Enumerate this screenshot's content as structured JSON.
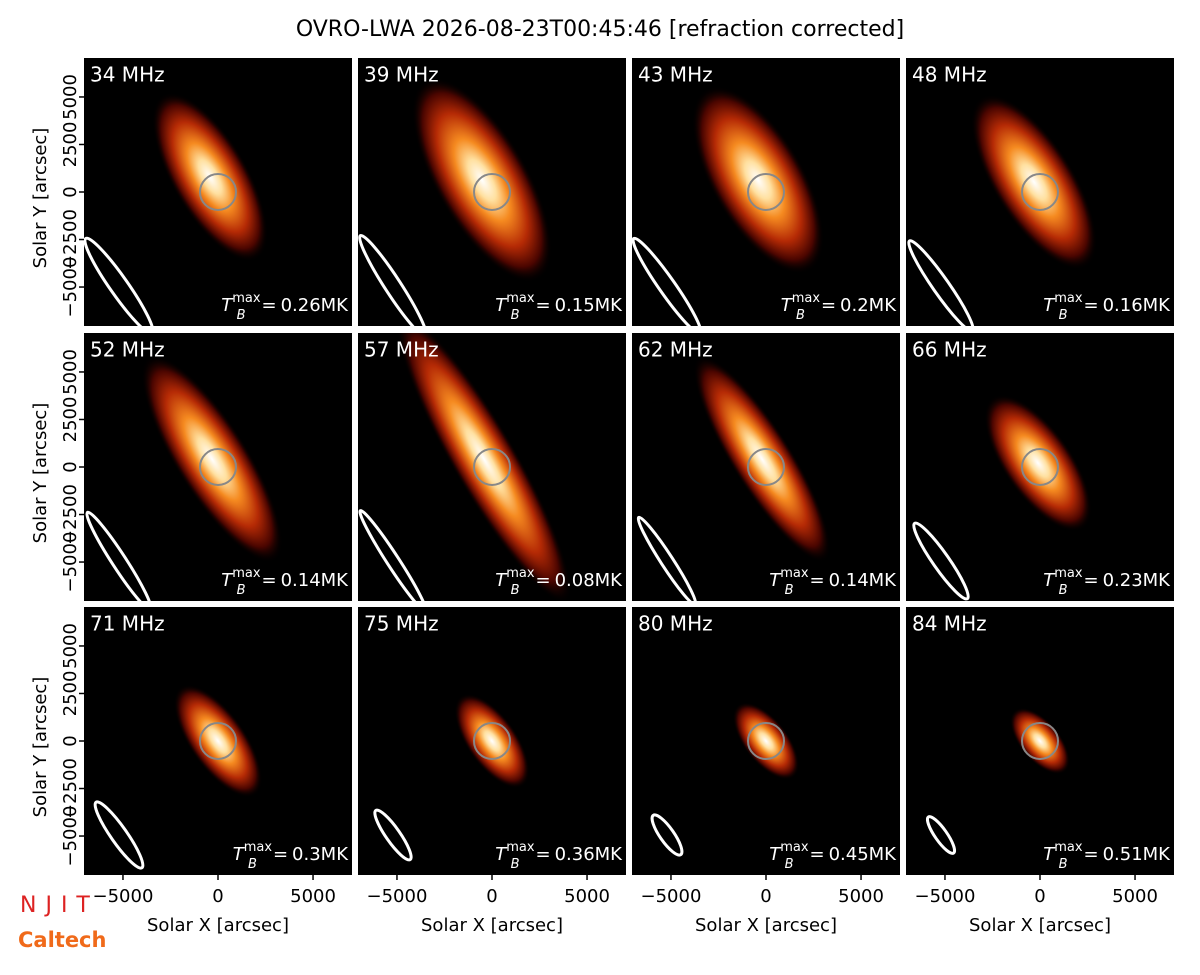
{
  "chart_data": {
    "type": "image",
    "title": "OVRO-LWA 2026-08-23T00:45:46 [refraction corrected]",
    "x_label": "Solar X [arcsec]",
    "y_label": "Solar Y [arcsec]",
    "xlim": [
      -7050,
      7050
    ],
    "ylim": [
      -7050,
      7050
    ],
    "xticks": [
      {
        "value": -5000,
        "label": "−5000"
      },
      0,
      5000
    ],
    "yticks": [
      {
        "value": -5000,
        "label": "−5000"
      },
      {
        "value": -2500,
        "label": "−2500"
      },
      0,
      2500,
      5000
    ],
    "tb_symbol": "T",
    "tb_sub": "B",
    "tb_sup": "max",
    "tb_eq": "=",
    "panels": [
      {
        "frequency": "34 MHz",
        "tb_max": 0.26,
        "tb_max_label": "0.26MK"
      },
      {
        "frequency": "39 MHz",
        "tb_max": 0.15,
        "tb_max_label": "0.15MK"
      },
      {
        "frequency": "43 MHz",
        "tb_max": 0.2,
        "tb_max_label": "0.2MK"
      },
      {
        "frequency": "48 MHz",
        "tb_max": 0.16,
        "tb_max_label": "0.16MK"
      },
      {
        "frequency": "52 MHz",
        "tb_max": 0.14,
        "tb_max_label": "0.14MK"
      },
      {
        "frequency": "57 MHz",
        "tb_max": 0.08,
        "tb_max_label": "0.08MK"
      },
      {
        "frequency": "62 MHz",
        "tb_max": 0.14,
        "tb_max_label": "0.14MK"
      },
      {
        "frequency": "66 MHz",
        "tb_max": 0.23,
        "tb_max_label": "0.23MK"
      },
      {
        "frequency": "71 MHz",
        "tb_max": 0.3,
        "tb_max_label": "0.3MK"
      },
      {
        "frequency": "75 MHz",
        "tb_max": 0.36,
        "tb_max_label": "0.36MK"
      },
      {
        "frequency": "80 MHz",
        "tb_max": 0.45,
        "tb_max_label": "0.45MK"
      },
      {
        "frequency": "84 MHz",
        "tb_max": 0.51,
        "tb_max_label": "0.51MK"
      }
    ],
    "logos": [
      "NJIT",
      "Caltech"
    ]
  }
}
